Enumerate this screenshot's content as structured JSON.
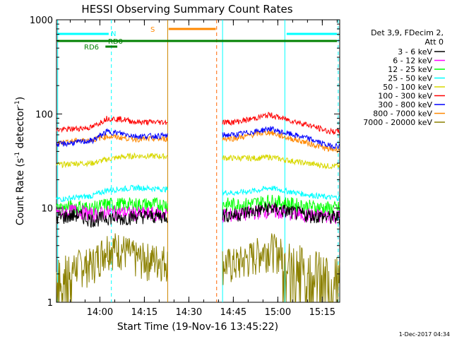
{
  "chart_data": {
    "type": "line",
    "title": "HESSI Observing Summary Count Rates",
    "xlabel": "Start Time (19-Nov-16 13:45:22)",
    "ylabel_main": "Count Rate (s",
    "ylabel_sup1": "-1",
    "ylabel_mid": " detector",
    "ylabel_sup2": "-1",
    "ylabel_end": ")",
    "y_scale": "log",
    "ylim": [
      1,
      1000
    ],
    "xlim_minutes": [
      0,
      95.5
    ],
    "x_tick_labels": [
      "14:00",
      "14:15",
      "14:30",
      "14:45",
      "15:00",
      "15:15"
    ],
    "x_tick_minutes": [
      14.63,
      29.63,
      44.63,
      59.63,
      74.63,
      89.63
    ],
    "y_tick_labels": [
      "1",
      "10",
      "100",
      "1000"
    ],
    "y_tick_values": [
      1,
      10,
      100,
      1000
    ],
    "legend_header": [
      "Det 3,9, FDecim 2,",
      "Att 0"
    ],
    "timestamp": "1-Dec-2017 04:34",
    "data_gap_minutes": [
      37.5,
      56.0
    ],
    "series": [
      {
        "name": "3 - 6 keV",
        "color": "#000000",
        "values": [
          8,
          8.5,
          7.5,
          8,
          7.8,
          8.2,
          8.5,
          9.0,
          9.5,
          10,
          9.5,
          8.5,
          8.0
        ]
      },
      {
        "name": "6 - 12 keV",
        "color": "#ff00ff",
        "values": [
          9,
          9.5,
          8.5,
          9,
          9.0,
          8.8,
          8.5,
          8.8,
          9.2,
          9.5,
          9.0,
          8.5,
          8.2
        ]
      },
      {
        "name": "12 - 25 keV",
        "color": "#00ff00",
        "values": [
          10,
          10.5,
          10,
          11,
          11,
          11,
          11,
          11,
          11.5,
          12,
          11.5,
          10.5,
          10
        ]
      },
      {
        "name": "25 - 50 keV",
        "color": "#00ffff",
        "values": [
          12.5,
          13,
          13.5,
          15.5,
          16,
          16.5,
          14.5,
          15,
          15.5,
          16.5,
          15.5,
          14,
          13
        ]
      },
      {
        "name": "50 - 100 keV",
        "color": "#d8d800",
        "values": [
          29,
          30,
          30,
          33,
          35,
          36,
          34,
          34,
          34,
          35,
          33,
          30,
          28
        ]
      },
      {
        "name": "100 - 300 keV",
        "color": "#ff0000",
        "values": [
          68,
          70,
          72,
          90,
          88,
          82,
          82,
          86,
          92,
          98,
          90,
          78,
          65
        ]
      },
      {
        "name": "300 - 800 keV",
        "color": "#0000ff",
        "values": [
          48,
          50,
          52,
          65,
          62,
          58,
          60,
          63,
          66,
          70,
          64,
          56,
          46
        ]
      },
      {
        "name": "800 - 7000 keV",
        "color": "#ff8800",
        "values": [
          50,
          52,
          53,
          58,
          56,
          54,
          55,
          58,
          62,
          64,
          58,
          50,
          42
        ]
      },
      {
        "name": "7000 - 20000 keV",
        "color": "#8b8000",
        "values": [
          2.1,
          2.5,
          2.6,
          4.0,
          3.8,
          3.0,
          2.6,
          2.9,
          3.4,
          3.9,
          3.3,
          2.7,
          2.2
        ]
      }
    ],
    "series_x_minutes": [
      2,
      7,
      12,
      17,
      22,
      27,
      60,
      64,
      68,
      72,
      76,
      84,
      92
    ],
    "annotations": {
      "N": "N",
      "S": "S",
      "RD6": "RD6",
      "RD0": "RD0"
    }
  }
}
